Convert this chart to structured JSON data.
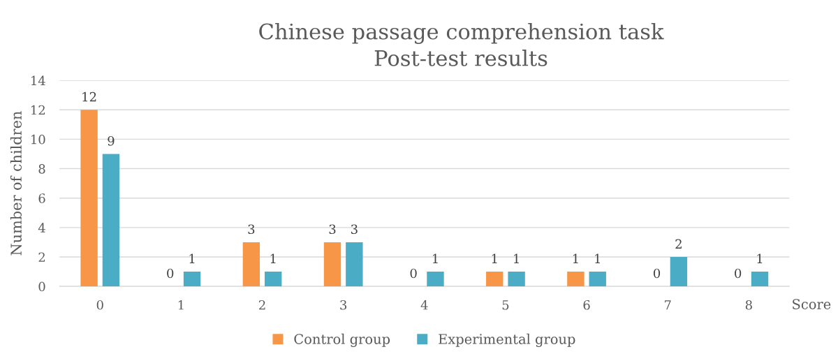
{
  "chart_data": {
    "type": "bar",
    "title": "Chinese passage comprehension task\nPost-test results",
    "xlabel": "Score",
    "ylabel": "Number of children",
    "categories": [
      "0",
      "1",
      "2",
      "3",
      "4",
      "5",
      "6",
      "7",
      "8"
    ],
    "series": [
      {
        "name": "Control group",
        "color": "#f79646",
        "values": [
          12,
          0,
          3,
          3,
          0,
          1,
          1,
          0,
          0
        ]
      },
      {
        "name": "Experimental group",
        "color": "#4bacc6",
        "values": [
          9,
          1,
          1,
          3,
          1,
          1,
          1,
          2,
          1
        ]
      }
    ],
    "ylim": [
      0,
      14
    ],
    "yticks": [
      0,
      2,
      4,
      6,
      8,
      10,
      12,
      14
    ],
    "grid": "y",
    "legend": "bottom",
    "data_labels": true
  }
}
